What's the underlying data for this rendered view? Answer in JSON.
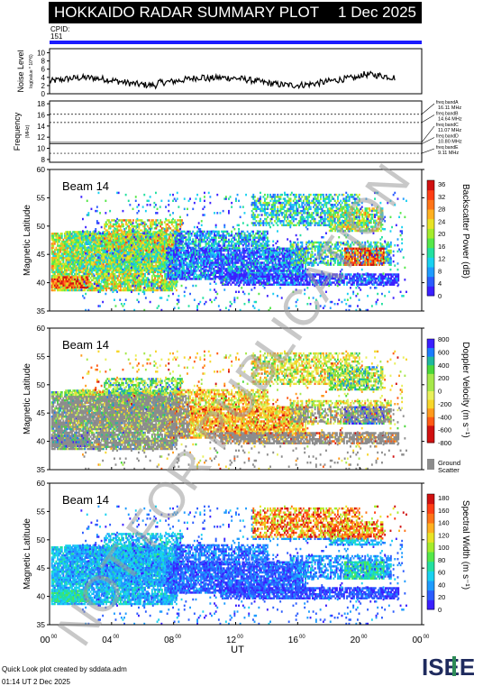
{
  "header": {
    "title": "HOKKAIDO RADAR SUMMARY PLOT",
    "date": "1 Dec 2025",
    "cpid_label": "CPID:",
    "cpid_value": "151"
  },
  "noise_panel": {
    "ylabel": "Noise Level",
    "ylabel_sub": "log(value * 10^6)",
    "yticks": [
      "0",
      "2",
      "4",
      "6",
      "8",
      "10"
    ],
    "ylim": [
      0,
      11
    ]
  },
  "freq_panel": {
    "ylabel": "Frequency",
    "ylabel_unit": "(MHz)",
    "yticks": [
      "8",
      "10",
      "12",
      "14",
      "16",
      "18"
    ],
    "ylim": [
      7.5,
      18.5
    ],
    "bands": [
      {
        "name": "freq bandA",
        "value": "16.11 MHz",
        "f": 16.11
      },
      {
        "name": "freq bandB",
        "value": "14.64 MHz",
        "f": 14.64
      },
      {
        "name": "freq bandC",
        "value": "11.07 MHz",
        "f": 11.07
      },
      {
        "name": "freq bandD",
        "value": "10.80 MHz",
        "f": 10.8
      },
      {
        "name": "freq bandE",
        "value": "9.11 MHz",
        "f": 9.11
      }
    ]
  },
  "panels": [
    {
      "id": "power",
      "beam": "Beam 14",
      "ylabel": "Magnetic Latitude",
      "cbar_label": "Backscatter Power (dB)",
      "cbar_ticks": [
        "0",
        "4",
        "8",
        "12",
        "16",
        "20",
        "24",
        "28",
        "32",
        "36"
      ]
    },
    {
      "id": "velocity",
      "beam": "Beam 14",
      "ylabel": "Magnetic Latitude",
      "cbar_label": "Doppler Velocity (m s⁻¹)",
      "cbar_ticks": [
        "-800",
        "-600",
        "-400",
        "-200",
        "0",
        "200",
        "400",
        "600",
        "800"
      ],
      "gs_label_1": "Ground",
      "gs_label_2": "Scatter"
    },
    {
      "id": "width",
      "beam": "Beam 14",
      "ylabel": "Magnetic Latitude",
      "cbar_label": "Spectral Width (m s⁻¹)",
      "cbar_ticks": [
        "0",
        "20",
        "40",
        "60",
        "80",
        "100",
        "120",
        "140",
        "160",
        "180"
      ]
    }
  ],
  "lat_ticks": [
    "35",
    "40",
    "45",
    "50",
    "55",
    "60"
  ],
  "lat_range": [
    35,
    60
  ],
  "time_axis": {
    "label": "UT",
    "ticks": [
      {
        "h": "00",
        "m": "00"
      },
      {
        "h": "04",
        "m": "00"
      },
      {
        "h": "08",
        "m": "00"
      },
      {
        "h": "12",
        "m": "00"
      },
      {
        "h": "16",
        "m": "00"
      },
      {
        "h": "20",
        "m": "00"
      },
      {
        "h": "00",
        "m": "00"
      }
    ]
  },
  "watermark": "NOT FOR PUBLICATION",
  "footer": {
    "line1": "Quick Look plot created by sddata.adm",
    "line2": "01:14 UT  2 Dec 2025"
  },
  "logo_text": "ISEE",
  "colors": {
    "cpid_bar": "#1b1bff",
    "ground_scatter": "#8c8c8c",
    "watermark": "#9a9a9a",
    "logo_green": "#2e8b57",
    "logo_navy": "#1f2b5e"
  },
  "chart_data": [
    {
      "type": "line",
      "name": "noise",
      "title": "Noise Level",
      "ylim": [
        0,
        11
      ],
      "x_range_hours": [
        0,
        24
      ],
      "note_values": "mostly 1-4 log units"
    },
    {
      "type": "heatmap",
      "name": "backscatter_power",
      "xlim_hours": [
        0,
        24
      ],
      "ylim": [
        35,
        60
      ],
      "zlim": [
        0,
        36
      ]
    },
    {
      "type": "heatmap",
      "name": "doppler_velocity",
      "xlim_hours": [
        0,
        24
      ],
      "ylim": [
        35,
        60
      ],
      "zlim": [
        -800,
        800
      ]
    },
    {
      "type": "heatmap",
      "name": "spectral_width",
      "xlim_hours": [
        0,
        24
      ],
      "ylim": [
        35,
        60
      ],
      "zlim": [
        0,
        180
      ]
    }
  ]
}
